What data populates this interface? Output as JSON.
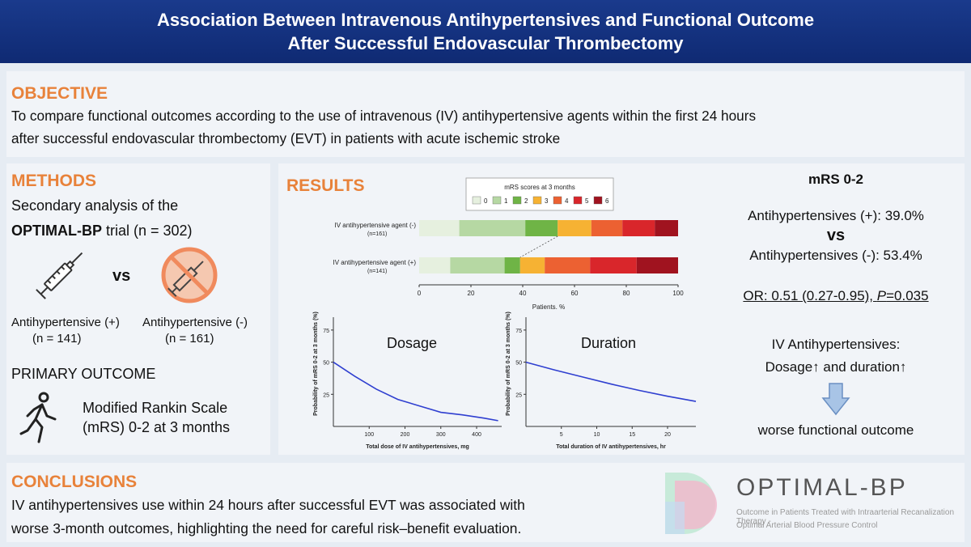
{
  "header": {
    "title_line1": "Association Between Intravenous Antihypertensives and Functional Outcome",
    "title_line2": "After Successful Endovascular Thrombectomy"
  },
  "objective": {
    "title": "OBJECTIVE",
    "line1": "To compare functional outcomes according to the use of intravenous (IV) antihypertensive agents within the first 24 hours",
    "line2": "after successful endovascular thrombectomy (EVT) in patients with acute ischemic stroke"
  },
  "methods": {
    "title": "METHODS",
    "line1": "Secondary analysis of the",
    "trial_bold": "OPTIMAL-BP",
    "trial_rest": " trial (n = 302)",
    "vs": "vs",
    "group_pos_label": "Antihypertensive (+)",
    "group_pos_n": "(n = 141)",
    "group_neg_label": "Antihypertensive (-)",
    "group_neg_n": "(n = 161)",
    "primary_title": "PRIMARY OUTCOME",
    "primary_line1": "Modified Rankin Scale",
    "primary_line2": "(mRS) 0-2 at 3 months",
    "icons": [
      "syringe-icon",
      "no-syringe-icon",
      "walking-person-icon"
    ]
  },
  "results": {
    "title": "RESULTS",
    "summary": {
      "title": "mRS 0-2",
      "pos": "Antihypertensives (+): 39.0%",
      "vs": "vs",
      "neg": "Antihypertensives (-): 53.4%",
      "or_text": "OR: 0.51 (0.27-0.95), ",
      "p_italic": "P",
      "p_value": "=0.035",
      "conclusion_line1": "IV Antihypertensives:",
      "conclusion_line2": "Dosage↑ and duration↑",
      "conclusion_line3": "worse functional outcome"
    }
  },
  "conclusions": {
    "title": "CONCLUSIONS",
    "line1": "IV antihypertensives use within 24 hours after successful EVT was associated with",
    "line2": "worse 3-month outcomes, highlighting the need for careful risk–benefit evaluation."
  },
  "logo": {
    "name": "OPTIMAL-BP",
    "sub1": "Outcome in Patients Treated with Intraarterial Recanalization Therapy -",
    "sub2": "Optimal Arterial Blood Pressure Control"
  },
  "chart_data": [
    {
      "type": "bar",
      "orientation": "horizontal",
      "stacked": true,
      "legend_title": "mRS scores at 3 months",
      "legend_placement": "top",
      "categories": [
        "IV antihypertensive agent (-)",
        "IV antihypertensive agent (+)"
      ],
      "category_sublabels": [
        "(n=161)",
        "(n=141)"
      ],
      "series": [
        {
          "name": "0",
          "color": "#e6f0df",
          "values": [
            15.5,
            12.0
          ]
        },
        {
          "name": "1",
          "color": "#b6d8a3",
          "values": [
            25.5,
            21.0
          ]
        },
        {
          "name": "2",
          "color": "#6fb446",
          "values": [
            12.5,
            6.0
          ]
        },
        {
          "name": "3",
          "color": "#f6b233",
          "values": [
            13.0,
            9.5
          ]
        },
        {
          "name": "4",
          "color": "#ec6132",
          "values": [
            12.0,
            17.5
          ]
        },
        {
          "name": "5",
          "color": "#d9262b",
          "values": [
            12.5,
            18.0
          ]
        },
        {
          "name": "6",
          "color": "#a0131f",
          "values": [
            9.0,
            16.0
          ]
        }
      ],
      "xlabel": "Patients, %",
      "xlim": [
        0,
        100
      ],
      "xticks": [
        0,
        20,
        40,
        60,
        80,
        100
      ]
    },
    {
      "type": "line",
      "title": "Dosage",
      "xlabel": "Total dose of IV antihypertensives, mg",
      "ylabel": "Probability of mRS 0-2 at 3 months (%)",
      "xticks": [
        100,
        200,
        300,
        400
      ],
      "yticks": [
        25,
        50,
        75
      ],
      "xlim": [
        0,
        470
      ],
      "ylim": [
        0,
        85
      ],
      "series": [
        {
          "color": "#2f3fd0",
          "x": [
            0,
            60,
            120,
            180,
            240,
            300,
            360,
            420,
            460
          ],
          "y": [
            50,
            39,
            29,
            21,
            16,
            11,
            9,
            6.5,
            4.5
          ]
        }
      ]
    },
    {
      "type": "line",
      "title": "Duration",
      "xlabel": "Total duration of IV antihypertensives, hr",
      "ylabel": "Probability of mRS 0-2 at 3 months (%)",
      "xticks": [
        5,
        10,
        15,
        20
      ],
      "yticks": [
        25,
        50,
        75
      ],
      "xlim": [
        0,
        24
      ],
      "ylim": [
        0,
        85
      ],
      "series": [
        {
          "color": "#2f3fd0",
          "x": [
            0,
            4,
            8,
            12,
            16,
            20,
            24
          ],
          "y": [
            50,
            44,
            38.5,
            33,
            28,
            23.5,
            19.5
          ]
        }
      ]
    }
  ]
}
